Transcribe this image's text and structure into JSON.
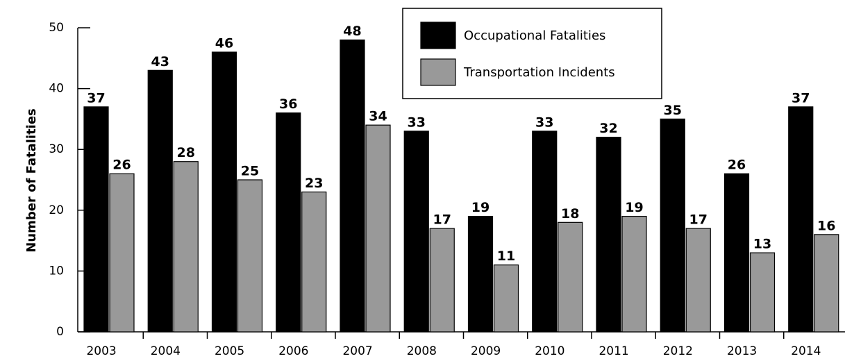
{
  "chart_data": {
    "type": "bar",
    "y_label": "Number of Fatalities",
    "categories": [
      "2003",
      "2004",
      "2005",
      "2006",
      "2007",
      "2008",
      "2009",
      "2010",
      "2011",
      "2012",
      "2013",
      "2014"
    ],
    "series": [
      {
        "name": "Occupational Fatalities",
        "color": "#000000",
        "values": [
          37,
          43,
          46,
          36,
          48,
          33,
          19,
          33,
          32,
          35,
          26,
          37
        ]
      },
      {
        "name": "Transportation Incidents",
        "color": "#999999",
        "values": [
          26,
          28,
          25,
          23,
          34,
          17,
          11,
          18,
          19,
          17,
          13,
          16
        ]
      }
    ],
    "ylim": [
      0,
      50
    ],
    "yticks": [
      0,
      10,
      20,
      30,
      40,
      50
    ],
    "grid": false,
    "legend": "top-right"
  }
}
